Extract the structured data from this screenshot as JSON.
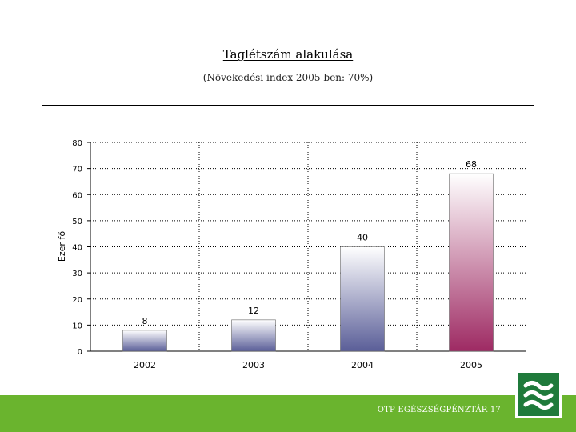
{
  "header": {
    "title": "Taglétszám alakulása",
    "subtitle": "(Növekedési index 2005-ben: 70%)"
  },
  "footer": {
    "org": "OTP EGÉSZSÉGPÉNZTÁR",
    "page_number": "17"
  },
  "colors": {
    "footer_green": "#6ab42e",
    "logo_green": "#1f7a3b",
    "bar_blue": "#5a5e98",
    "bar_magenta": "#9e2a63"
  },
  "chart_data": {
    "type": "bar",
    "categories": [
      "2002",
      "2003",
      "2004",
      "2005"
    ],
    "values": [
      8,
      12,
      40,
      68
    ],
    "data_labels": [
      "8",
      "12",
      "40",
      "68"
    ],
    "ylabel": "Ezer fő",
    "xlabel": "",
    "ylim": [
      0,
      80
    ],
    "yticks": [
      "0",
      "10",
      "20",
      "30",
      "40",
      "50",
      "60",
      "70",
      "80"
    ],
    "grid": true
  }
}
